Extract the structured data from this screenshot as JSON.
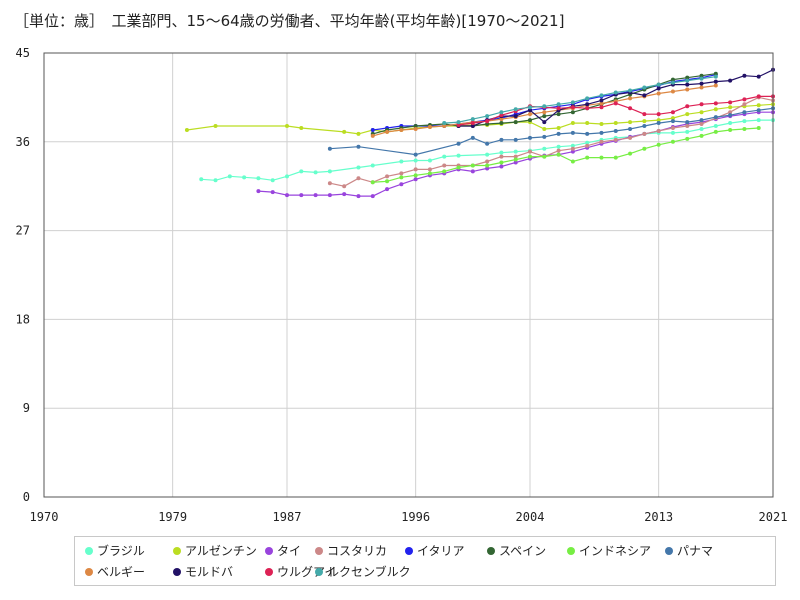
{
  "title": "［単位：歳］　工業部門、15～64歳の労働者、平均年齢(平均年齢)[1970～2021]",
  "chart_data": {
    "type": "line",
    "title": "工業部門、15～64歳の労働者、平均年齢(平均年齢)[1970～2021]",
    "unit": "［単位：歳］",
    "xlabel": "",
    "ylabel": "",
    "xlim": [
      1970,
      2021
    ],
    "ylim": [
      0,
      45
    ],
    "x_ticks": [
      1970,
      1979,
      1987,
      1996,
      2004,
      2013,
      2021
    ],
    "y_ticks": [
      0,
      9,
      18,
      27,
      36,
      45
    ],
    "grid": true,
    "legend_position": "bottom",
    "series": [
      {
        "name": "ブラジル",
        "color": "#66ffcc",
        "x": [
          1981,
          1982,
          1983,
          1984,
          1985,
          1986,
          1987,
          1988,
          1989,
          1990,
          1992,
          1993,
          1995,
          1996,
          1997,
          1998,
          1999,
          2001,
          2002,
          2003,
          2004,
          2005,
          2006,
          2007,
          2008,
          2009,
          2010,
          2011,
          2012,
          2013,
          2014,
          2015,
          2016,
          2017,
          2018,
          2019,
          2020,
          2021
        ],
        "y": [
          32.2,
          32.1,
          32.5,
          32.4,
          32.3,
          32.1,
          32.5,
          33.0,
          32.9,
          33.0,
          33.4,
          33.6,
          34.0,
          34.1,
          34.1,
          34.5,
          34.6,
          34.7,
          34.9,
          35.0,
          35.1,
          35.3,
          35.5,
          35.6,
          35.9,
          36.2,
          36.4,
          36.5,
          36.8,
          36.9,
          36.9,
          37.0,
          37.3,
          37.6,
          37.9,
          38.1,
          38.2,
          38.2
        ]
      },
      {
        "name": "アルゼンチン",
        "color": "#bbdd22",
        "x": [
          1980,
          1982,
          1987,
          1988,
          1991,
          1992,
          1993,
          1994,
          1995,
          1996,
          1997,
          1998,
          1999,
          2000,
          2001,
          2002,
          2003,
          2004,
          2005,
          2006,
          2007,
          2008,
          2009,
          2010,
          2011,
          2012,
          2013,
          2014,
          2015,
          2016,
          2017,
          2018,
          2019,
          2020,
          2021
        ],
        "y": [
          37.2,
          37.6,
          37.6,
          37.4,
          37.0,
          36.8,
          37.2,
          37.0,
          37.2,
          37.4,
          37.5,
          37.6,
          37.6,
          37.7,
          37.7,
          37.8,
          38.0,
          38.0,
          37.3,
          37.4,
          37.9,
          37.9,
          37.8,
          37.9,
          38.0,
          38.1,
          38.2,
          38.4,
          38.8,
          39.0,
          39.3,
          39.5,
          39.6,
          39.7,
          39.8
        ]
      },
      {
        "name": "タイ",
        "color": "#9944dd",
        "x": [
          1985,
          1986,
          1987,
          1988,
          1989,
          1990,
          1991,
          1992,
          1993,
          1994,
          1995,
          1996,
          1997,
          1998,
          1999,
          2000,
          2001,
          2002,
          2003,
          2004,
          2005,
          2006,
          2007,
          2008,
          2009,
          2010,
          2011,
          2012,
          2013,
          2014,
          2015,
          2016,
          2017,
          2018,
          2019,
          2020,
          2021
        ],
        "y": [
          31.0,
          30.9,
          30.6,
          30.6,
          30.6,
          30.6,
          30.7,
          30.5,
          30.5,
          31.2,
          31.7,
          32.2,
          32.6,
          32.8,
          33.2,
          33.0,
          33.3,
          33.5,
          33.9,
          34.3,
          34.6,
          34.7,
          35.0,
          35.4,
          35.8,
          36.1,
          36.5,
          36.8,
          37.1,
          37.5,
          37.8,
          38.0,
          38.3,
          38.6,
          38.8,
          39.0,
          39.0
        ]
      },
      {
        "name": "コスタリカ",
        "color": "#cc8888",
        "x": [
          1990,
          1991,
          1992,
          1993,
          1994,
          1995,
          1996,
          1997,
          1998,
          1999,
          2000,
          2001,
          2002,
          2003,
          2004,
          2005,
          2006,
          2007,
          2008,
          2009,
          2010,
          2011,
          2012,
          2013,
          2014,
          2015,
          2016,
          2017,
          2018,
          2019,
          2020,
          2021
        ],
        "y": [
          31.8,
          31.5,
          32.3,
          31.9,
          32.5,
          32.8,
          33.2,
          33.2,
          33.6,
          33.6,
          33.6,
          34.0,
          34.5,
          34.5,
          35.0,
          34.5,
          35.1,
          35.3,
          35.6,
          36.0,
          36.2,
          36.4,
          36.8,
          37.1,
          37.4,
          37.6,
          37.8,
          38.4,
          39.0,
          39.8,
          40.5,
          40.2
        ]
      },
      {
        "name": "イタリア",
        "color": "#2222ee",
        "x": [
          1993,
          1994,
          1995,
          1996,
          1997,
          1998,
          1999,
          2000,
          2001,
          2002,
          2003,
          2004,
          2005,
          2006,
          2007,
          2008,
          2009,
          2010,
          2011,
          2012,
          2013,
          2014,
          2015,
          2016,
          2017
        ],
        "y": [
          37.2,
          37.4,
          37.6,
          37.6,
          37.6,
          37.6,
          37.8,
          38.0,
          38.2,
          38.4,
          38.8,
          39.2,
          39.4,
          39.6,
          39.8,
          40.3,
          40.6,
          40.8,
          41.1,
          41.4,
          41.7,
          42.1,
          42.3,
          42.5,
          42.8
        ]
      },
      {
        "name": "スペイン",
        "color": "#336633",
        "x": [
          1993,
          1994,
          1995,
          1996,
          1997,
          1998,
          1999,
          2000,
          2001,
          2002,
          2003,
          2004,
          2005,
          2006,
          2007,
          2008,
          2009,
          2010,
          2011,
          2012,
          2013,
          2014,
          2015,
          2016,
          2017
        ],
        "y": [
          36.8,
          37.2,
          37.4,
          37.6,
          37.7,
          37.8,
          37.6,
          37.6,
          37.8,
          37.9,
          38.0,
          38.2,
          38.6,
          38.8,
          39.0,
          39.4,
          39.8,
          40.3,
          40.8,
          41.3,
          41.8,
          42.3,
          42.5,
          42.7,
          42.9
        ]
      },
      {
        "name": "インドネシア",
        "color": "#77ee44",
        "x": [
          1993,
          1994,
          1995,
          1996,
          1997,
          1998,
          1999,
          2000,
          2001,
          2002,
          2003,
          2004,
          2005,
          2006,
          2007,
          2008,
          2009,
          2010,
          2011,
          2012,
          2013,
          2014,
          2015,
          2016,
          2017,
          2018,
          2019,
          2020
        ],
        "y": [
          31.9,
          32.0,
          32.4,
          32.6,
          32.8,
          33.0,
          33.4,
          33.6,
          33.6,
          33.9,
          34.2,
          34.5,
          34.5,
          34.7,
          34.0,
          34.4,
          34.4,
          34.4,
          34.8,
          35.3,
          35.7,
          36.0,
          36.3,
          36.6,
          37.0,
          37.2,
          37.3,
          37.4
        ]
      },
      {
        "name": "パナマ",
        "color": "#4477aa",
        "x": [
          1990,
          1992,
          1996,
          1999,
          2000,
          2001,
          2002,
          2003,
          2004,
          2005,
          2006,
          2007,
          2008,
          2009,
          2010,
          2011,
          2012,
          2013,
          2014,
          2015,
          2016,
          2017,
          2018,
          2019,
          2020,
          2021
        ],
        "y": [
          35.3,
          35.5,
          34.7,
          35.8,
          36.4,
          35.8,
          36.2,
          36.2,
          36.4,
          36.5,
          36.8,
          36.9,
          36.8,
          36.9,
          37.1,
          37.3,
          37.6,
          37.9,
          38.1,
          38.0,
          38.2,
          38.5,
          38.7,
          39.0,
          39.2,
          39.4
        ]
      },
      {
        "name": "ベルギー",
        "color": "#dd8844",
        "x": [
          1993,
          1994,
          1995,
          1996,
          1997,
          1998,
          1999,
          2000,
          2001,
          2002,
          2003,
          2004,
          2005,
          2006,
          2007,
          2008,
          2009,
          2010,
          2011,
          2012,
          2013,
          2014,
          2015,
          2016,
          2017
        ],
        "y": [
          36.6,
          37.0,
          37.2,
          37.3,
          37.5,
          37.6,
          37.8,
          38.0,
          38.1,
          38.3,
          38.5,
          38.8,
          39.0,
          39.2,
          39.4,
          39.7,
          39.9,
          40.1,
          40.4,
          40.6,
          40.9,
          41.1,
          41.3,
          41.5,
          41.7
        ]
      },
      {
        "name": "モルドバ",
        "color": "#221166",
        "x": [
          1999,
          2000,
          2001,
          2002,
          2003,
          2004,
          2005,
          2006,
          2007,
          2008,
          2009,
          2010,
          2011,
          2012,
          2013,
          2014,
          2015,
          2016,
          2017,
          2018,
          2019,
          2020,
          2021
        ],
        "y": [
          37.6,
          37.6,
          38.2,
          38.6,
          38.6,
          39.2,
          38.0,
          39.2,
          39.6,
          39.8,
          40.2,
          40.8,
          41.0,
          40.7,
          41.4,
          41.8,
          41.8,
          41.9,
          42.1,
          42.2,
          42.7,
          42.6,
          43.3
        ]
      },
      {
        "name": "ウルグアイ",
        "color": "#dd2255",
        "x": [
          1999,
          2000,
          2001,
          2002,
          2003,
          2004,
          2005,
          2006,
          2007,
          2008,
          2009,
          2010,
          2011,
          2012,
          2013,
          2014,
          2015,
          2016,
          2017,
          2018,
          2019,
          2020,
          2021
        ],
        "y": [
          37.7,
          37.9,
          38.1,
          38.7,
          39.1,
          39.6,
          39.5,
          39.4,
          39.5,
          39.4,
          39.5,
          39.9,
          39.4,
          38.8,
          38.8,
          39.0,
          39.6,
          39.8,
          39.9,
          40.0,
          40.3,
          40.6,
          40.6
        ]
      },
      {
        "name": "ルクセンブルク",
        "color": "#44aaaa",
        "x": [
          1998,
          1999,
          2000,
          2001,
          2002,
          2003,
          2004,
          2005,
          2006,
          2007,
          2008,
          2009,
          2010,
          2011,
          2012,
          2013,
          2014,
          2015,
          2016,
          2017
        ],
        "y": [
          37.9,
          38.0,
          38.3,
          38.6,
          39.0,
          39.3,
          39.5,
          39.6,
          39.8,
          40.0,
          40.4,
          40.7,
          41.0,
          41.2,
          41.5,
          41.8,
          42.0,
          42.2,
          42.4,
          42.6
        ]
      }
    ]
  }
}
